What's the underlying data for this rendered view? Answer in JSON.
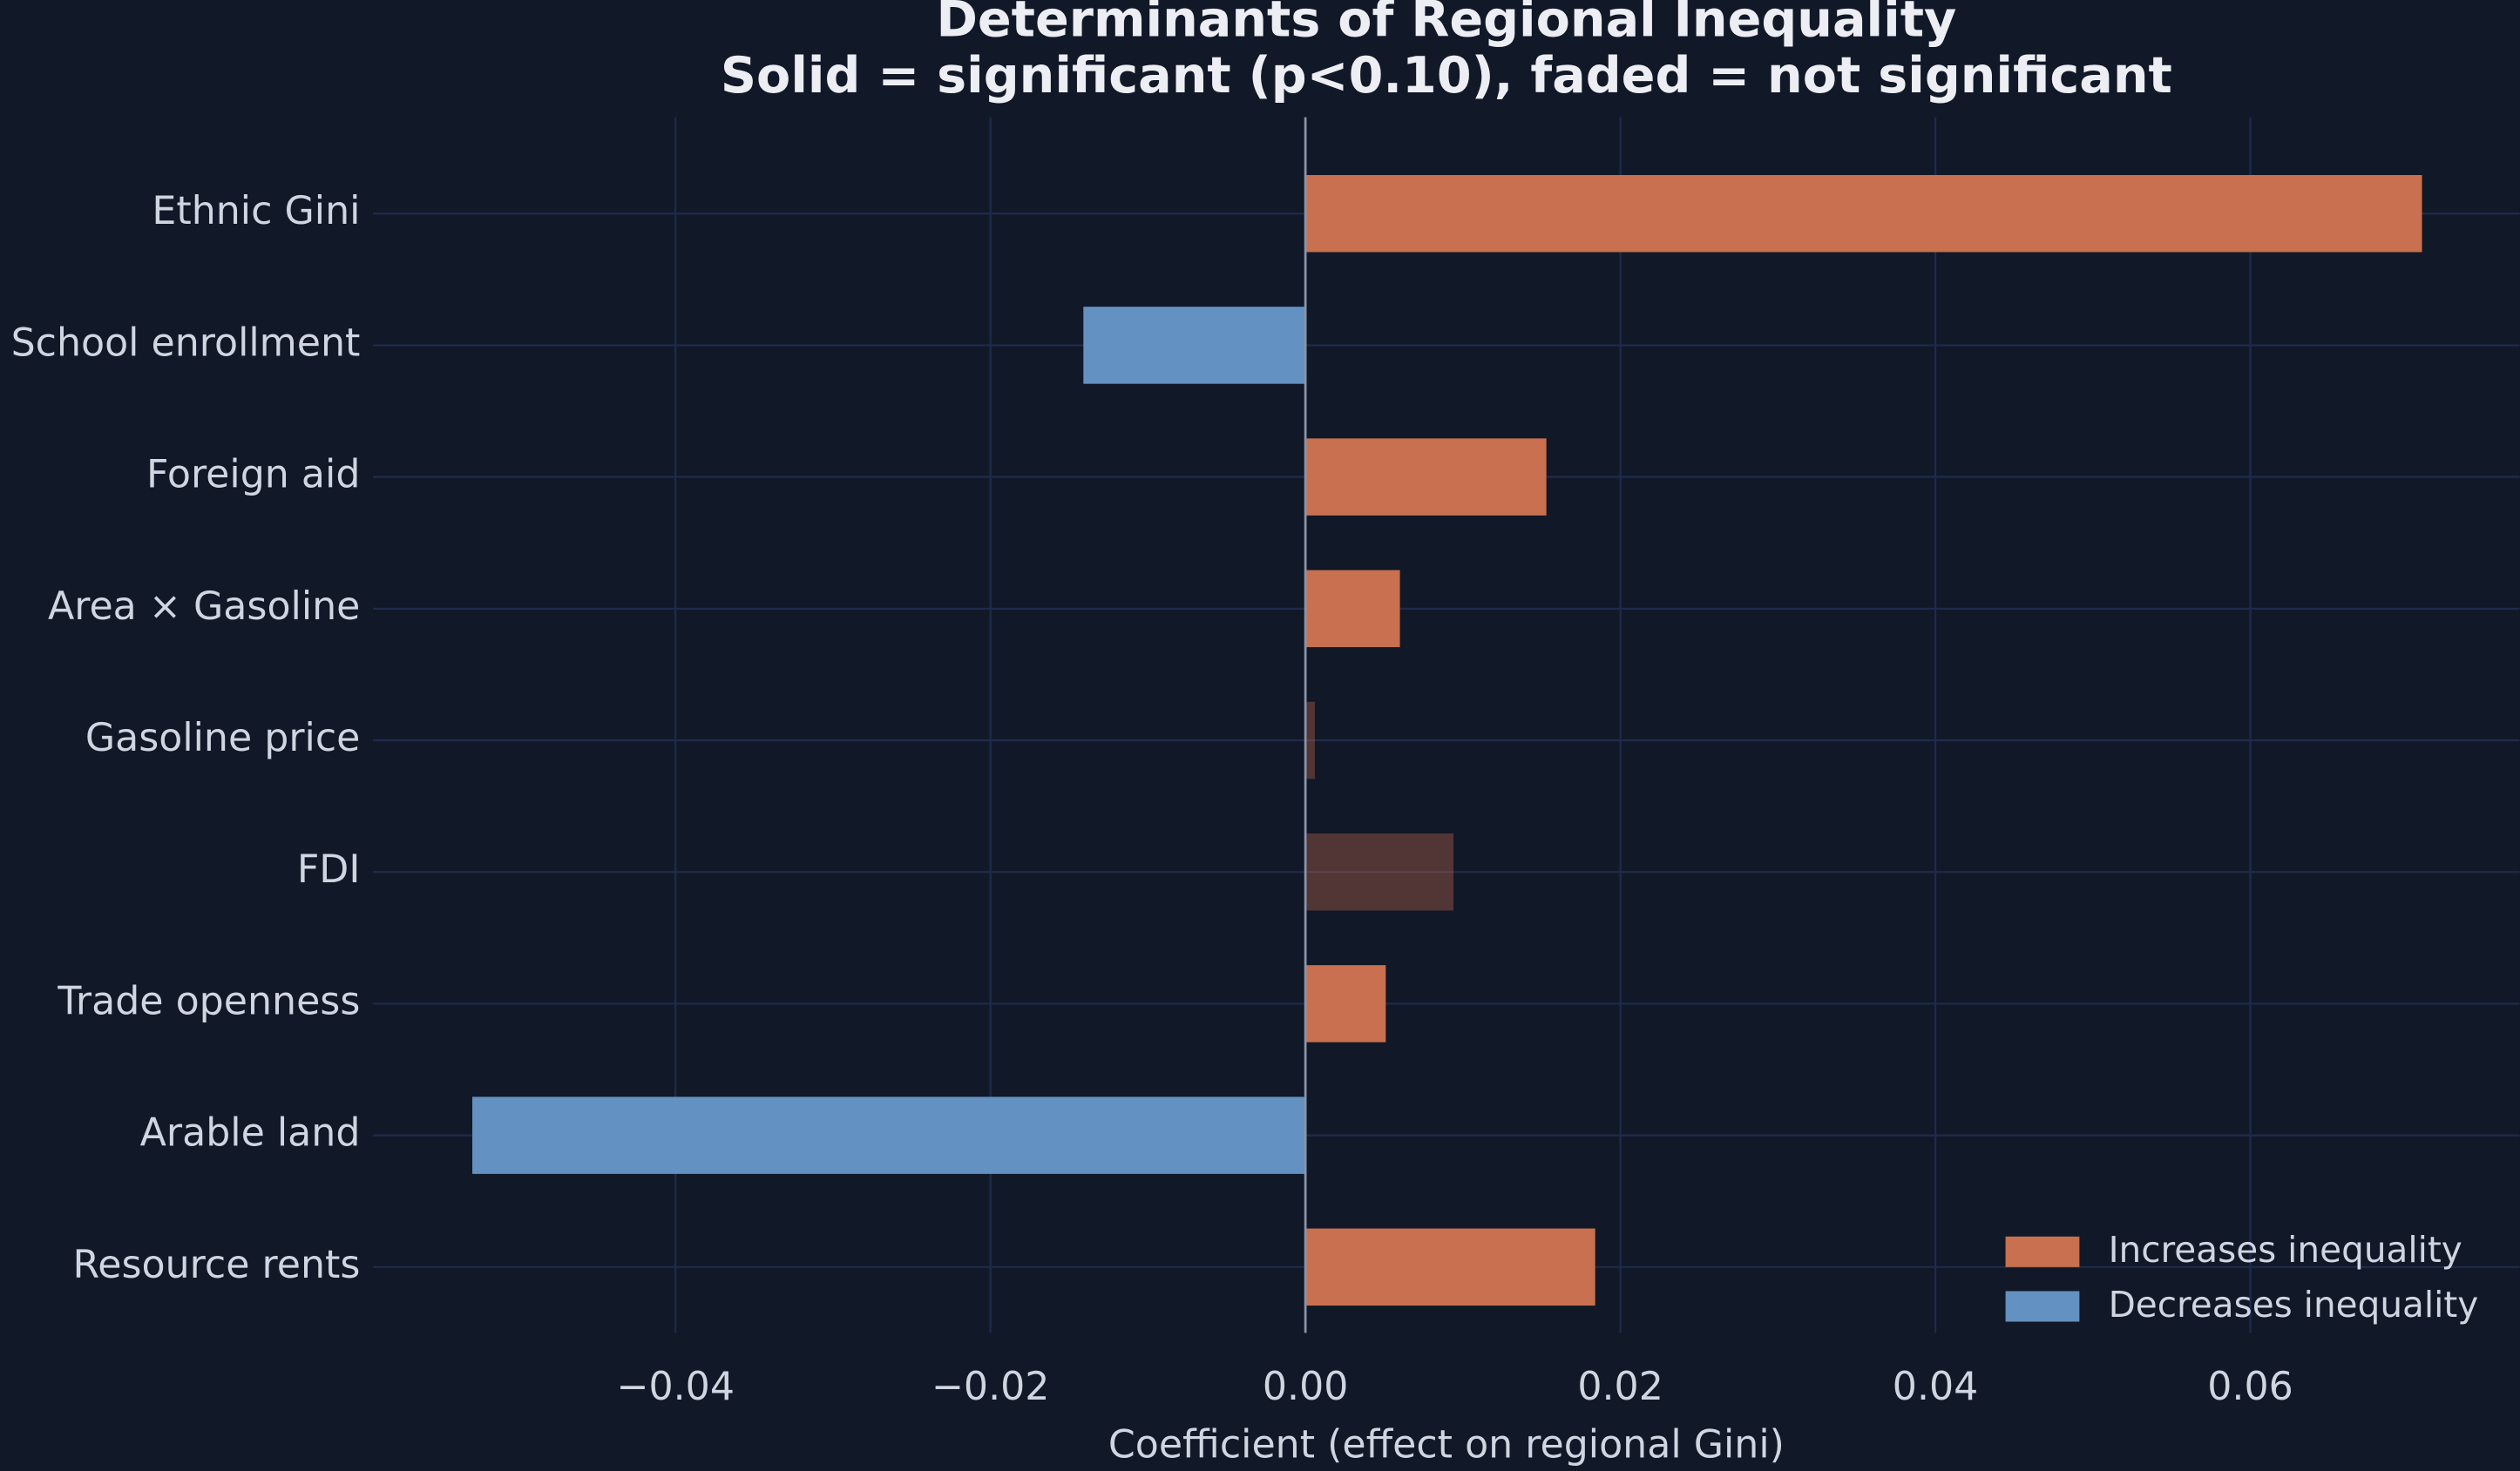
{
  "chart_data": {
    "type": "barh",
    "title": "Determinants of Regional Inequality",
    "subtitle": "Solid = significant (p<0.10), faded = not significant",
    "xlabel": "Coefficient (effect on regional Gini)",
    "categories": [
      "Ethnic Gini",
      "School enrollment",
      "Foreign aid",
      "Area × Gasoline",
      "Gasoline price",
      "FDI",
      "Trade openness",
      "Arable land",
      "Resource rents"
    ],
    "values": [
      0.0709,
      -0.0141,
      0.0153,
      0.006,
      0.0006,
      0.0094,
      0.0051,
      -0.0529,
      0.0184
    ],
    "significant": [
      true,
      true,
      true,
      true,
      false,
      false,
      true,
      true,
      true
    ],
    "legend": [
      {
        "name": "Increases inequality",
        "color": "#c8704f"
      },
      {
        "name": "Decreases inequality",
        "color": "#6391c2"
      }
    ],
    "legend_position": "lower right",
    "xlim": [
      -0.0592,
      0.0771
    ],
    "xticks": [
      {
        "value": -0.04,
        "label": "−0.04"
      },
      {
        "value": -0.02,
        "label": "−0.02"
      },
      {
        "value": 0,
        "label": "0.00"
      },
      0.02,
      0.04,
      0.06
    ],
    "grid": true
  }
}
